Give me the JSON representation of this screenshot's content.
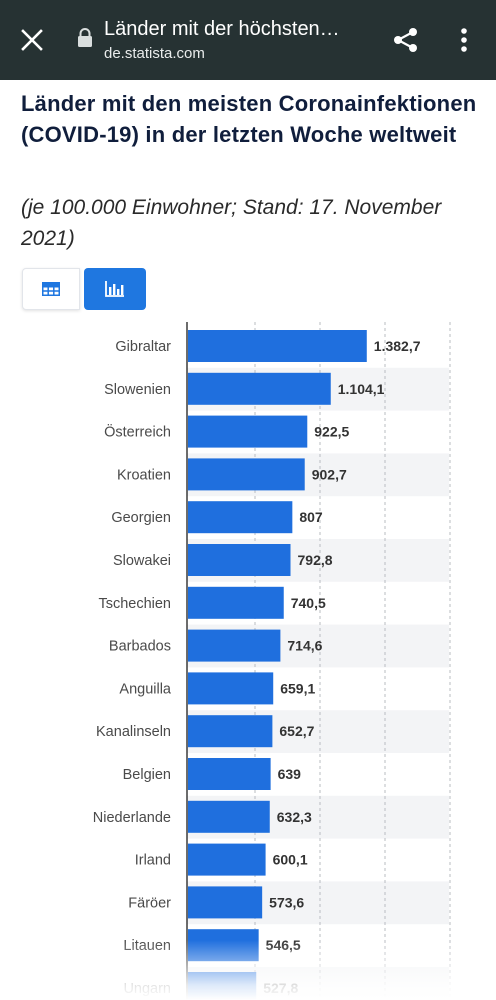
{
  "browser": {
    "page_title": "Länder mit der höchsten…",
    "url": "de.statista.com",
    "icons": {
      "close": "close-icon",
      "lock": "lock-icon",
      "share": "share-icon",
      "menu": "more-vert-icon"
    }
  },
  "header": {
    "title": "Länder mit den meisten Coronainfektionen (COVID-19) in der letzten Woche weltweit",
    "subtitle": "(je 100.000 Einwohner; Stand: 17. November 2021)"
  },
  "view_toggle": {
    "table_icon": "table-icon",
    "chart_icon": "bar-chart-icon",
    "active": "chart"
  },
  "colors": {
    "topbar": "#263233",
    "bar": "#1f6fde",
    "accent": "#1f77e0",
    "title": "#101e3c"
  },
  "chart_data": {
    "type": "bar",
    "orientation": "horizontal",
    "categories": [
      "Gibraltar",
      "Slowenien",
      "Österreich",
      "Kroatien",
      "Georgien",
      "Slowakei",
      "Tschechien",
      "Barbados",
      "Anguilla",
      "Kanalinseln",
      "Belgien",
      "Niederlande",
      "Irland",
      "Färöer",
      "Litauen",
      "Ungarn"
    ],
    "values": [
      1382.7,
      1104.1,
      922.5,
      902.7,
      807,
      792.8,
      740.5,
      714.6,
      659.1,
      652.7,
      639,
      632.3,
      600.1,
      573.6,
      546.5,
      527.8
    ],
    "value_labels": [
      "1.382,7",
      "1.104,1",
      "922,5",
      "902,7",
      "807",
      "792,8",
      "740,5",
      "714,6",
      "659,1",
      "652,7",
      "639",
      "632,3",
      "600,1",
      "573,6",
      "546,5",
      "527,8"
    ],
    "xlim": [
      0,
      2000
    ],
    "grid": true
  }
}
